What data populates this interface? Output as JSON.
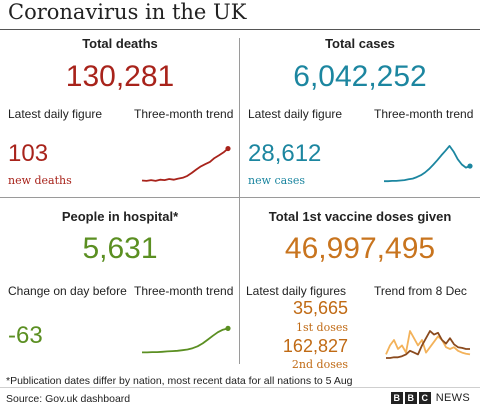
{
  "title": "Coronavirus in the UK",
  "colors": {
    "deaths": "#a8231b",
    "cases": "#1c86a0",
    "hospital": "#5b8f22",
    "vaccine": "#c8741e",
    "vaccine_first": "#f3b25a",
    "vaccine_second": "#8a4a1e"
  },
  "deaths": {
    "heading": "Total deaths",
    "total": "130,281",
    "daily_label": "Latest daily figure",
    "trend_label": "Three-month trend",
    "daily_value": "103",
    "daily_unit": "new deaths"
  },
  "cases": {
    "heading": "Total cases",
    "total": "6,042,252",
    "daily_label": "Latest daily figure",
    "trend_label": "Three-month trend",
    "daily_value": "28,612",
    "daily_unit": "new cases"
  },
  "hospital": {
    "heading": "People in hospital*",
    "total": "5,631",
    "change_label": "Change on day before",
    "trend_label": "Three-month trend",
    "change_value": "-63"
  },
  "vaccine": {
    "heading": "Total 1st vaccine doses given",
    "total": "46,997,495",
    "daily_label": "Latest daily figures",
    "trend_label": "Trend from 8 Dec",
    "first_value": "35,665",
    "first_label": "1st doses",
    "second_value": "162,827",
    "second_label": "2nd doses"
  },
  "footer": {
    "note": "*Publication dates differ by nation, most recent data for all nations to 5 Aug",
    "source": "Source: Gov.uk dashboard",
    "brand_letters": [
      "B",
      "B",
      "C"
    ],
    "brand_word": "NEWS"
  },
  "chart_data": [
    {
      "type": "line",
      "series": [
        {
          "values": [
            0.04,
            0.03,
            0.05,
            0.03,
            0.06,
            0.05,
            0.08,
            0.06,
            0.09,
            0.11,
            0.16,
            0.24,
            0.33,
            0.41,
            0.47,
            0.53,
            0.63,
            0.7,
            0.78,
            0.88
          ]
        }
      ]
    },
    {
      "type": "line",
      "series": [
        {
          "values": [
            0.02,
            0.02,
            0.03,
            0.03,
            0.04,
            0.05,
            0.07,
            0.09,
            0.13,
            0.18,
            0.25,
            0.34,
            0.45,
            0.57,
            0.7,
            0.82,
            0.95,
            0.8,
            0.6,
            0.46,
            0.38,
            0.42
          ]
        }
      ]
    },
    {
      "type": "line",
      "series": [
        {
          "values": [
            0.05,
            0.05,
            0.06,
            0.06,
            0.07,
            0.08,
            0.09,
            0.1,
            0.12,
            0.14,
            0.18,
            0.24,
            0.33,
            0.45,
            0.57,
            0.68,
            0.76,
            0.8
          ]
        }
      ]
    },
    {
      "type": "line",
      "series": [
        {
          "values": [
            0.1,
            0.35,
            0.5,
            0.25,
            0.35,
            0.15,
            0.75,
            0.55,
            0.35,
            0.5,
            0.15,
            0.3,
            0.45,
            0.6,
            0.5,
            0.3,
            0.25,
            0.3,
            0.2,
            0.15,
            0.12,
            0.1
          ]
        },
        {
          "values": [
            0.0,
            0.0,
            0.02,
            0.02,
            0.05,
            0.1,
            0.2,
            0.15,
            0.1,
            0.35,
            0.55,
            0.75,
            0.65,
            0.7,
            0.5,
            0.4,
            0.55,
            0.38,
            0.3,
            0.28,
            0.25,
            0.25
          ]
        }
      ]
    }
  ]
}
